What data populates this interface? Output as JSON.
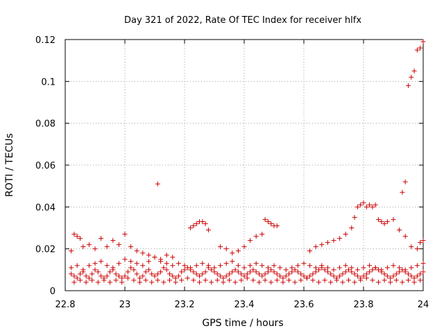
{
  "chart_data": {
    "type": "scatter",
    "title": "Day 321 of 2022, Rate Of TEC Index for receiver hlfx",
    "xlabel": "GPS time / hours",
    "ylabel": "ROTI / TECUs",
    "xlim": [
      22.8,
      24
    ],
    "ylim": [
      0,
      0.12
    ],
    "xticks": [
      22.8,
      23,
      23.2,
      23.4,
      23.6,
      23.8,
      24
    ],
    "xtick_labels": [
      "22.8",
      "23",
      "23.2",
      "23.4",
      "23.6",
      "23.8",
      "24"
    ],
    "yticks": [
      0,
      0.02,
      0.04,
      0.06,
      0.08,
      0.1,
      0.12
    ],
    "ytick_labels": [
      "0",
      "0.02",
      "0.04",
      "0.06",
      "0.08",
      "0.1",
      "0.12"
    ],
    "grid": true,
    "marker": "+",
    "color": "#cc0000",
    "series": [
      {
        "name": "ROTI",
        "x": [
          22.82,
          22.83,
          22.84,
          22.85,
          22.86,
          22.87,
          22.88,
          22.89,
          22.9,
          22.91,
          22.92,
          22.93,
          22.94,
          22.95,
          22.96,
          22.97,
          22.98,
          22.99,
          23.0,
          23.01,
          23.02,
          23.03,
          23.04,
          23.05,
          23.06,
          23.07,
          23.08,
          23.09,
          23.1,
          23.11,
          23.12,
          23.13,
          23.14,
          23.15,
          23.16,
          23.17,
          23.18,
          23.19,
          23.2,
          23.21,
          23.22,
          23.23,
          23.24,
          23.25,
          23.26,
          23.27,
          23.28,
          23.29,
          23.3,
          23.31,
          23.32,
          23.33,
          23.34,
          23.35,
          23.36,
          23.37,
          23.38,
          23.39,
          23.4,
          23.41,
          23.42,
          23.43,
          23.44,
          23.45,
          23.46,
          23.47,
          23.48,
          23.49,
          23.5,
          23.51,
          23.52,
          23.53,
          23.54,
          23.55,
          23.56,
          23.57,
          23.58,
          23.59,
          23.6,
          23.61,
          23.62,
          23.63,
          23.64,
          23.65,
          23.66,
          23.67,
          23.68,
          23.69,
          23.7,
          23.71,
          23.72,
          23.73,
          23.74,
          23.75,
          23.76,
          23.77,
          23.78,
          23.79,
          23.8,
          23.81,
          23.82,
          23.83,
          23.84,
          23.85,
          23.86,
          23.87,
          23.88,
          23.89,
          23.9,
          23.91,
          23.92,
          23.93,
          23.94,
          23.95,
          23.96,
          23.97,
          23.98,
          23.99,
          24.0,
          22.82,
          22.84,
          22.86,
          22.88,
          22.9,
          22.92,
          22.94,
          22.96,
          22.98,
          23.0,
          23.02,
          23.04,
          23.06,
          23.08,
          23.1,
          23.12,
          23.14,
          23.16,
          23.18,
          23.2,
          23.22,
          23.24,
          23.26,
          23.28,
          23.3,
          23.32,
          23.34,
          23.36,
          23.38,
          23.4,
          23.42,
          23.44,
          23.46,
          23.48,
          23.5,
          23.52,
          23.54,
          23.56,
          23.58,
          23.6,
          23.62,
          23.64,
          23.66,
          23.68,
          23.7,
          23.72,
          23.74,
          23.76,
          23.78,
          23.8,
          23.82,
          23.84,
          23.86,
          23.88,
          23.9,
          23.92,
          23.94,
          23.96,
          23.98,
          24.0,
          22.83,
          22.85,
          22.87,
          22.89,
          22.91,
          22.93,
          22.95,
          22.97,
          22.99,
          23.01,
          23.03,
          23.05,
          23.07,
          23.09,
          23.11,
          23.13,
          23.15,
          23.17,
          23.19,
          23.21,
          23.23,
          23.25,
          23.27,
          23.29,
          23.31,
          23.33,
          23.35,
          23.37,
          23.39,
          23.41,
          23.43,
          23.45,
          23.47,
          23.49,
          23.51,
          23.53,
          23.55,
          23.57,
          23.59,
          23.61,
          23.63,
          23.65,
          23.67,
          23.69,
          23.71,
          23.73,
          23.75,
          23.77,
          23.79,
          23.81,
          23.83,
          23.85,
          23.87,
          23.89,
          23.91,
          23.93,
          23.95,
          23.97,
          23.99,
          22.82,
          22.83,
          22.84,
          22.85,
          22.86,
          22.88,
          22.9,
          22.92,
          22.94,
          22.96,
          22.98,
          23.0,
          23.02,
          23.04,
          23.06,
          23.08,
          23.1,
          23.12,
          23.14,
          23.16,
          23.22,
          23.23,
          23.24,
          23.25,
          23.26,
          23.27,
          23.28,
          23.32,
          23.34,
          23.36,
          23.38,
          23.4,
          23.42,
          23.44,
          23.46,
          23.47,
          23.48,
          23.49,
          23.5,
          23.51,
          23.62,
          23.64,
          23.66,
          23.68,
          23.7,
          23.72,
          23.74,
          23.76,
          23.77,
          23.78,
          23.79,
          23.8,
          23.81,
          23.82,
          23.83,
          23.84,
          23.85,
          23.86,
          23.87,
          23.88,
          23.9,
          23.92,
          23.94,
          23.96,
          23.98,
          23.99,
          24.0,
          23.11,
          23.93,
          23.94,
          23.95,
          23.96,
          23.97,
          23.98,
          23.99,
          24.0
        ],
        "y": [
          0.008,
          0.007,
          0.006,
          0.008,
          0.009,
          0.007,
          0.006,
          0.008,
          0.01,
          0.009,
          0.007,
          0.006,
          0.007,
          0.009,
          0.01,
          0.008,
          0.007,
          0.006,
          0.007,
          0.009,
          0.011,
          0.01,
          0.008,
          0.006,
          0.007,
          0.009,
          0.01,
          0.008,
          0.007,
          0.008,
          0.009,
          0.011,
          0.01,
          0.008,
          0.007,
          0.006,
          0.007,
          0.009,
          0.01,
          0.011,
          0.01,
          0.009,
          0.008,
          0.007,
          0.008,
          0.009,
          0.011,
          0.01,
          0.009,
          0.008,
          0.007,
          0.006,
          0.007,
          0.008,
          0.009,
          0.01,
          0.009,
          0.008,
          0.007,
          0.008,
          0.009,
          0.01,
          0.009,
          0.008,
          0.007,
          0.008,
          0.009,
          0.01,
          0.009,
          0.008,
          0.007,
          0.006,
          0.007,
          0.008,
          0.009,
          0.01,
          0.009,
          0.008,
          0.007,
          0.006,
          0.007,
          0.008,
          0.009,
          0.01,
          0.011,
          0.01,
          0.009,
          0.008,
          0.007,
          0.006,
          0.007,
          0.008,
          0.009,
          0.01,
          0.009,
          0.008,
          0.007,
          0.006,
          0.007,
          0.008,
          0.009,
          0.01,
          0.011,
          0.01,
          0.009,
          0.008,
          0.007,
          0.006,
          0.007,
          0.008,
          0.009,
          0.01,
          0.009,
          0.008,
          0.007,
          0.006,
          0.007,
          0.008,
          0.009,
          0.011,
          0.012,
          0.01,
          0.012,
          0.013,
          0.014,
          0.012,
          0.011,
          0.013,
          0.015,
          0.014,
          0.013,
          0.012,
          0.014,
          0.016,
          0.014,
          0.013,
          0.012,
          0.013,
          0.012,
          0.011,
          0.012,
          0.013,
          0.012,
          0.011,
          0.012,
          0.013,
          0.014,
          0.012,
          0.011,
          0.012,
          0.013,
          0.012,
          0.011,
          0.012,
          0.011,
          0.01,
          0.011,
          0.012,
          0.013,
          0.012,
          0.011,
          0.012,
          0.011,
          0.01,
          0.011,
          0.012,
          0.011,
          0.01,
          0.011,
          0.012,
          0.011,
          0.01,
          0.011,
          0.012,
          0.011,
          0.01,
          0.011,
          0.012,
          0.013,
          0.004,
          0.005,
          0.004,
          0.005,
          0.004,
          0.005,
          0.004,
          0.005,
          0.004,
          0.006,
          0.005,
          0.004,
          0.005,
          0.004,
          0.005,
          0.004,
          0.005,
          0.004,
          0.005,
          0.006,
          0.005,
          0.004,
          0.005,
          0.004,
          0.005,
          0.004,
          0.005,
          0.004,
          0.005,
          0.006,
          0.005,
          0.004,
          0.005,
          0.004,
          0.005,
          0.004,
          0.005,
          0.004,
          0.005,
          0.006,
          0.005,
          0.004,
          0.005,
          0.004,
          0.005,
          0.004,
          0.005,
          0.004,
          0.005,
          0.006,
          0.005,
          0.004,
          0.005,
          0.004,
          0.005,
          0.004,
          0.005,
          0.004,
          0.005,
          0.019,
          0.027,
          0.026,
          0.025,
          0.021,
          0.022,
          0.02,
          0.025,
          0.021,
          0.024,
          0.022,
          0.027,
          0.021,
          0.019,
          0.018,
          0.017,
          0.016,
          0.015,
          0.017,
          0.016,
          0.03,
          0.031,
          0.032,
          0.033,
          0.033,
          0.032,
          0.029,
          0.021,
          0.02,
          0.018,
          0.019,
          0.021,
          0.024,
          0.026,
          0.027,
          0.034,
          0.033,
          0.032,
          0.031,
          0.031,
          0.019,
          0.021,
          0.022,
          0.023,
          0.024,
          0.025,
          0.027,
          0.03,
          0.035,
          0.04,
          0.041,
          0.042,
          0.04,
          0.041,
          0.04,
          0.041,
          0.034,
          0.033,
          0.032,
          0.033,
          0.034,
          0.029,
          0.026,
          0.021,
          0.02,
          0.023,
          0.024,
          0.051,
          0.047,
          0.052,
          0.098,
          0.102,
          0.105,
          0.115,
          0.116,
          0.119
        ]
      }
    ]
  }
}
